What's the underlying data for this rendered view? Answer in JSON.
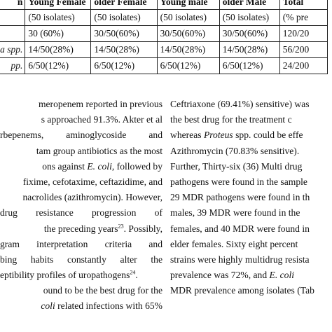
{
  "table": {
    "header_row1": [
      "n",
      "Young Female",
      "older Female",
      "Young male",
      "older Male",
      "Total"
    ],
    "header_row2": [
      "",
      "(50 isolates)",
      "(50 isolates)",
      "(50 isolates)",
      "(50 isolates)",
      "(% pre"
    ],
    "rows": [
      [
        "",
        "30 (60%)",
        "30/50(60%)",
        "30/50(60%)",
        "30/50(60%)",
        "120/20"
      ],
      [
        "a spp.",
        "14/50(28%)",
        "14/50(28%)",
        "14/50(28%)",
        "14/50(28%)",
        "56/200"
      ],
      [
        "pp.",
        "6/50(12%)",
        "6/50(12%)",
        "6/50(12%)",
        "6/50(12%)",
        "24/200"
      ]
    ]
  },
  "left_column": [
    {
      "text": "meropenem reported in previous"
    },
    {
      "text": "s approached 91.3%. Akter et al"
    },
    {
      "text": "rbepenems, aminoglycoside and"
    },
    {
      "text": "tam group antibiotics as the most"
    },
    {
      "pre": "ons against ",
      "em": "E. coli",
      "post": ", followed by"
    },
    {
      "text": "fixime, cefotaxime, ceftazidime, and"
    },
    {
      "text": "nacrolides (azithromycin). However,"
    },
    {
      "text": "drug resistance progression of"
    },
    {
      "pre": "the preceding years",
      "sup": "23",
      "post": ". Possibly,"
    },
    {
      "text": "gram interpretation criteria and"
    },
    {
      "text": "bing habits constantly alter the"
    },
    {
      "pre": "eptibility profiles of uropathogens",
      "sup": "24",
      "post": "."
    },
    {
      "text": "ound to be the best drug for the"
    },
    {
      "em_pre": "coli",
      "post": " related infections with 65%"
    }
  ],
  "right_column": [
    {
      "text": "Ceftriaxone (69.41%) sensitive) was"
    },
    {
      "text": "the best drug for the treatment c"
    },
    {
      "pre": "whereas ",
      "em": "Proteus",
      "post": " spp. could be effe"
    },
    {
      "text": "Azithromycin (70.83% sensitive)."
    },
    {
      "text": "Further, Thirty-six (36) Multi drug"
    },
    {
      "text": "pathogens were found in the sample"
    },
    {
      "text": "29 MDR pathogens were found in th"
    },
    {
      "text": "males, 39 MDR were found in the"
    },
    {
      "text": "females, and 40 MDR were found in"
    },
    {
      "text": "elder females. Sixty eight percent"
    },
    {
      "text": "strains were highly multidrug resista"
    },
    {
      "pre": "prevalence was 72%, and ",
      "em": "E. coli",
      "post": ""
    },
    {
      "text": "MDR prevalence among isolates (Tab"
    }
  ]
}
